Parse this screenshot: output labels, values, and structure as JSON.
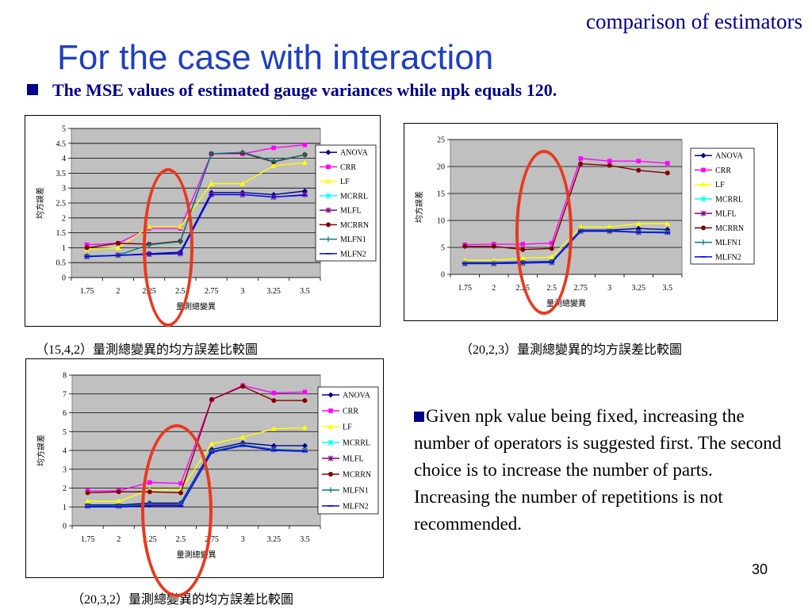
{
  "header": {
    "subtitle": "comparison of estimators",
    "title": "For the case with interaction",
    "bullet": "The MSE values of estimated gauge variances while npk  equals 120."
  },
  "note": "Given npk value being fixed, increasing the number of operators is suggested first. The second choice is to increase  the number of parts. Increasing the number of repetitions is not recommended.",
  "page_number": "30",
  "colors": {
    "ANOVA": "#00008b",
    "CRR": "#ff00ff",
    "LF": "#ffff00",
    "MCRRL": "#00ffff",
    "MLFL": "#800080",
    "MCRRN": "#800000",
    "MLFN1": "#008080",
    "MLFN2": "#0000ff",
    "plot_bg": "#c0c0c0",
    "highlight": "#e8391e"
  },
  "chart_data": [
    {
      "type": "line",
      "caption": "（15,4,2）量測總變異的均方誤差比較圖",
      "xlabel": "量測總變異",
      "ylabel": "均方誤差",
      "x": [
        "1.75",
        "2",
        "2.25",
        "2.5",
        "2.75",
        "3",
        "3.25",
        "3.5"
      ],
      "ylim": [
        0,
        5
      ],
      "yticks": [
        "0",
        "0.5",
        "1",
        "1.5",
        "2",
        "2.5",
        "3",
        "3.5",
        "4",
        "4.5",
        "5"
      ],
      "series": [
        {
          "name": "ANOVA",
          "values": [
            0.72,
            0.75,
            0.8,
            0.85,
            2.85,
            2.85,
            2.78,
            2.9
          ]
        },
        {
          "name": "CRR",
          "values": [
            1.1,
            1.15,
            1.65,
            1.65,
            4.15,
            4.15,
            4.35,
            4.45
          ]
        },
        {
          "name": "LF",
          "values": [
            0.95,
            1.0,
            1.7,
            1.7,
            3.15,
            3.15,
            3.75,
            3.85
          ]
        },
        {
          "name": "MCRRL",
          "values": [
            0.7,
            0.75,
            0.78,
            0.8,
            2.78,
            2.78,
            2.7,
            2.78
          ]
        },
        {
          "name": "MLFL",
          "values": [
            0.7,
            0.75,
            0.78,
            0.8,
            2.78,
            2.78,
            2.7,
            2.78
          ]
        },
        {
          "name": "MCRRN",
          "values": [
            1.0,
            1.15,
            1.12,
            1.22,
            4.15,
            4.18,
            3.88,
            4.12
          ]
        },
        {
          "name": "MLFN1",
          "values": [
            0.72,
            0.75,
            1.1,
            1.2,
            4.15,
            4.2,
            3.9,
            4.12
          ]
        },
        {
          "name": "MLFN2",
          "values": [
            0.7,
            0.74,
            0.78,
            0.8,
            2.78,
            2.78,
            2.7,
            2.76
          ]
        }
      ]
    },
    {
      "type": "line",
      "caption": "（20,2,3）量測總變異的均方誤差比較圖",
      "xlabel": "量測總變異",
      "ylabel": "均方誤差",
      "x": [
        "1.75",
        "2",
        "2.25",
        "2.5",
        "2.75",
        "3",
        "3.25",
        "3.5"
      ],
      "ylim": [
        0,
        25
      ],
      "yticks": [
        "0",
        "5",
        "10",
        "15",
        "20",
        "25"
      ],
      "series": [
        {
          "name": "ANOVA",
          "values": [
            2.2,
            2.2,
            2.3,
            2.4,
            8.2,
            8.2,
            8.5,
            8.3
          ]
        },
        {
          "name": "CRR",
          "values": [
            5.5,
            5.6,
            5.6,
            5.8,
            21.5,
            21.0,
            21.0,
            20.6
          ]
        },
        {
          "name": "LF",
          "values": [
            2.6,
            2.6,
            3.0,
            3.2,
            8.8,
            8.8,
            9.4,
            9.4
          ]
        },
        {
          "name": "MCRRL",
          "values": [
            2.0,
            2.0,
            2.1,
            2.2,
            8.0,
            8.0,
            7.8,
            7.8
          ]
        },
        {
          "name": "MLFL",
          "values": [
            2.0,
            2.0,
            2.1,
            2.2,
            8.0,
            8.0,
            7.8,
            7.8
          ]
        },
        {
          "name": "MCRRN",
          "values": [
            5.2,
            5.2,
            4.6,
            4.8,
            20.5,
            20.2,
            19.3,
            18.8
          ]
        },
        {
          "name": "MLFN1",
          "values": [
            2.1,
            2.1,
            2.2,
            2.3,
            8.1,
            8.1,
            7.9,
            7.9
          ]
        },
        {
          "name": "MLFN2",
          "values": [
            2.0,
            2.0,
            2.1,
            2.2,
            8.0,
            8.0,
            7.8,
            7.7
          ]
        }
      ]
    },
    {
      "type": "line",
      "caption": "（20,3,2）量測總變異的均方誤差比較圖",
      "xlabel": "量測總變異",
      "ylabel": "均方誤差",
      "x": [
        "1.75",
        "2",
        "2.25",
        "2.5",
        "2.75",
        "3",
        "3.25",
        "3.5"
      ],
      "ylim": [
        0,
        8
      ],
      "yticks": [
        "0",
        "1",
        "2",
        "3",
        "4",
        "5",
        "6",
        "7",
        "8"
      ],
      "series": [
        {
          "name": "ANOVA",
          "values": [
            1.1,
            1.1,
            1.2,
            1.2,
            4.05,
            4.4,
            4.25,
            4.25
          ]
        },
        {
          "name": "CRR",
          "values": [
            1.85,
            1.85,
            2.3,
            2.25,
            6.7,
            7.45,
            7.05,
            7.1
          ]
        },
        {
          "name": "LF",
          "values": [
            1.3,
            1.3,
            1.9,
            1.9,
            4.35,
            4.7,
            5.15,
            5.2
          ]
        },
        {
          "name": "MCRRL",
          "values": [
            1.05,
            1.05,
            1.1,
            1.1,
            3.95,
            4.3,
            4.05,
            4.0
          ]
        },
        {
          "name": "MLFL",
          "values": [
            1.05,
            1.05,
            1.1,
            1.1,
            3.95,
            4.3,
            4.05,
            4.0
          ]
        },
        {
          "name": "MCRRN",
          "values": [
            1.75,
            1.8,
            1.8,
            1.75,
            6.7,
            7.4,
            6.65,
            6.65
          ]
        },
        {
          "name": "MLFN1",
          "values": [
            1.05,
            1.05,
            1.15,
            1.15,
            3.95,
            4.3,
            4.05,
            4.0
          ]
        },
        {
          "name": "MLFN2",
          "values": [
            1.0,
            1.0,
            1.05,
            1.05,
            3.9,
            4.25,
            4.0,
            3.95
          ]
        }
      ]
    }
  ]
}
